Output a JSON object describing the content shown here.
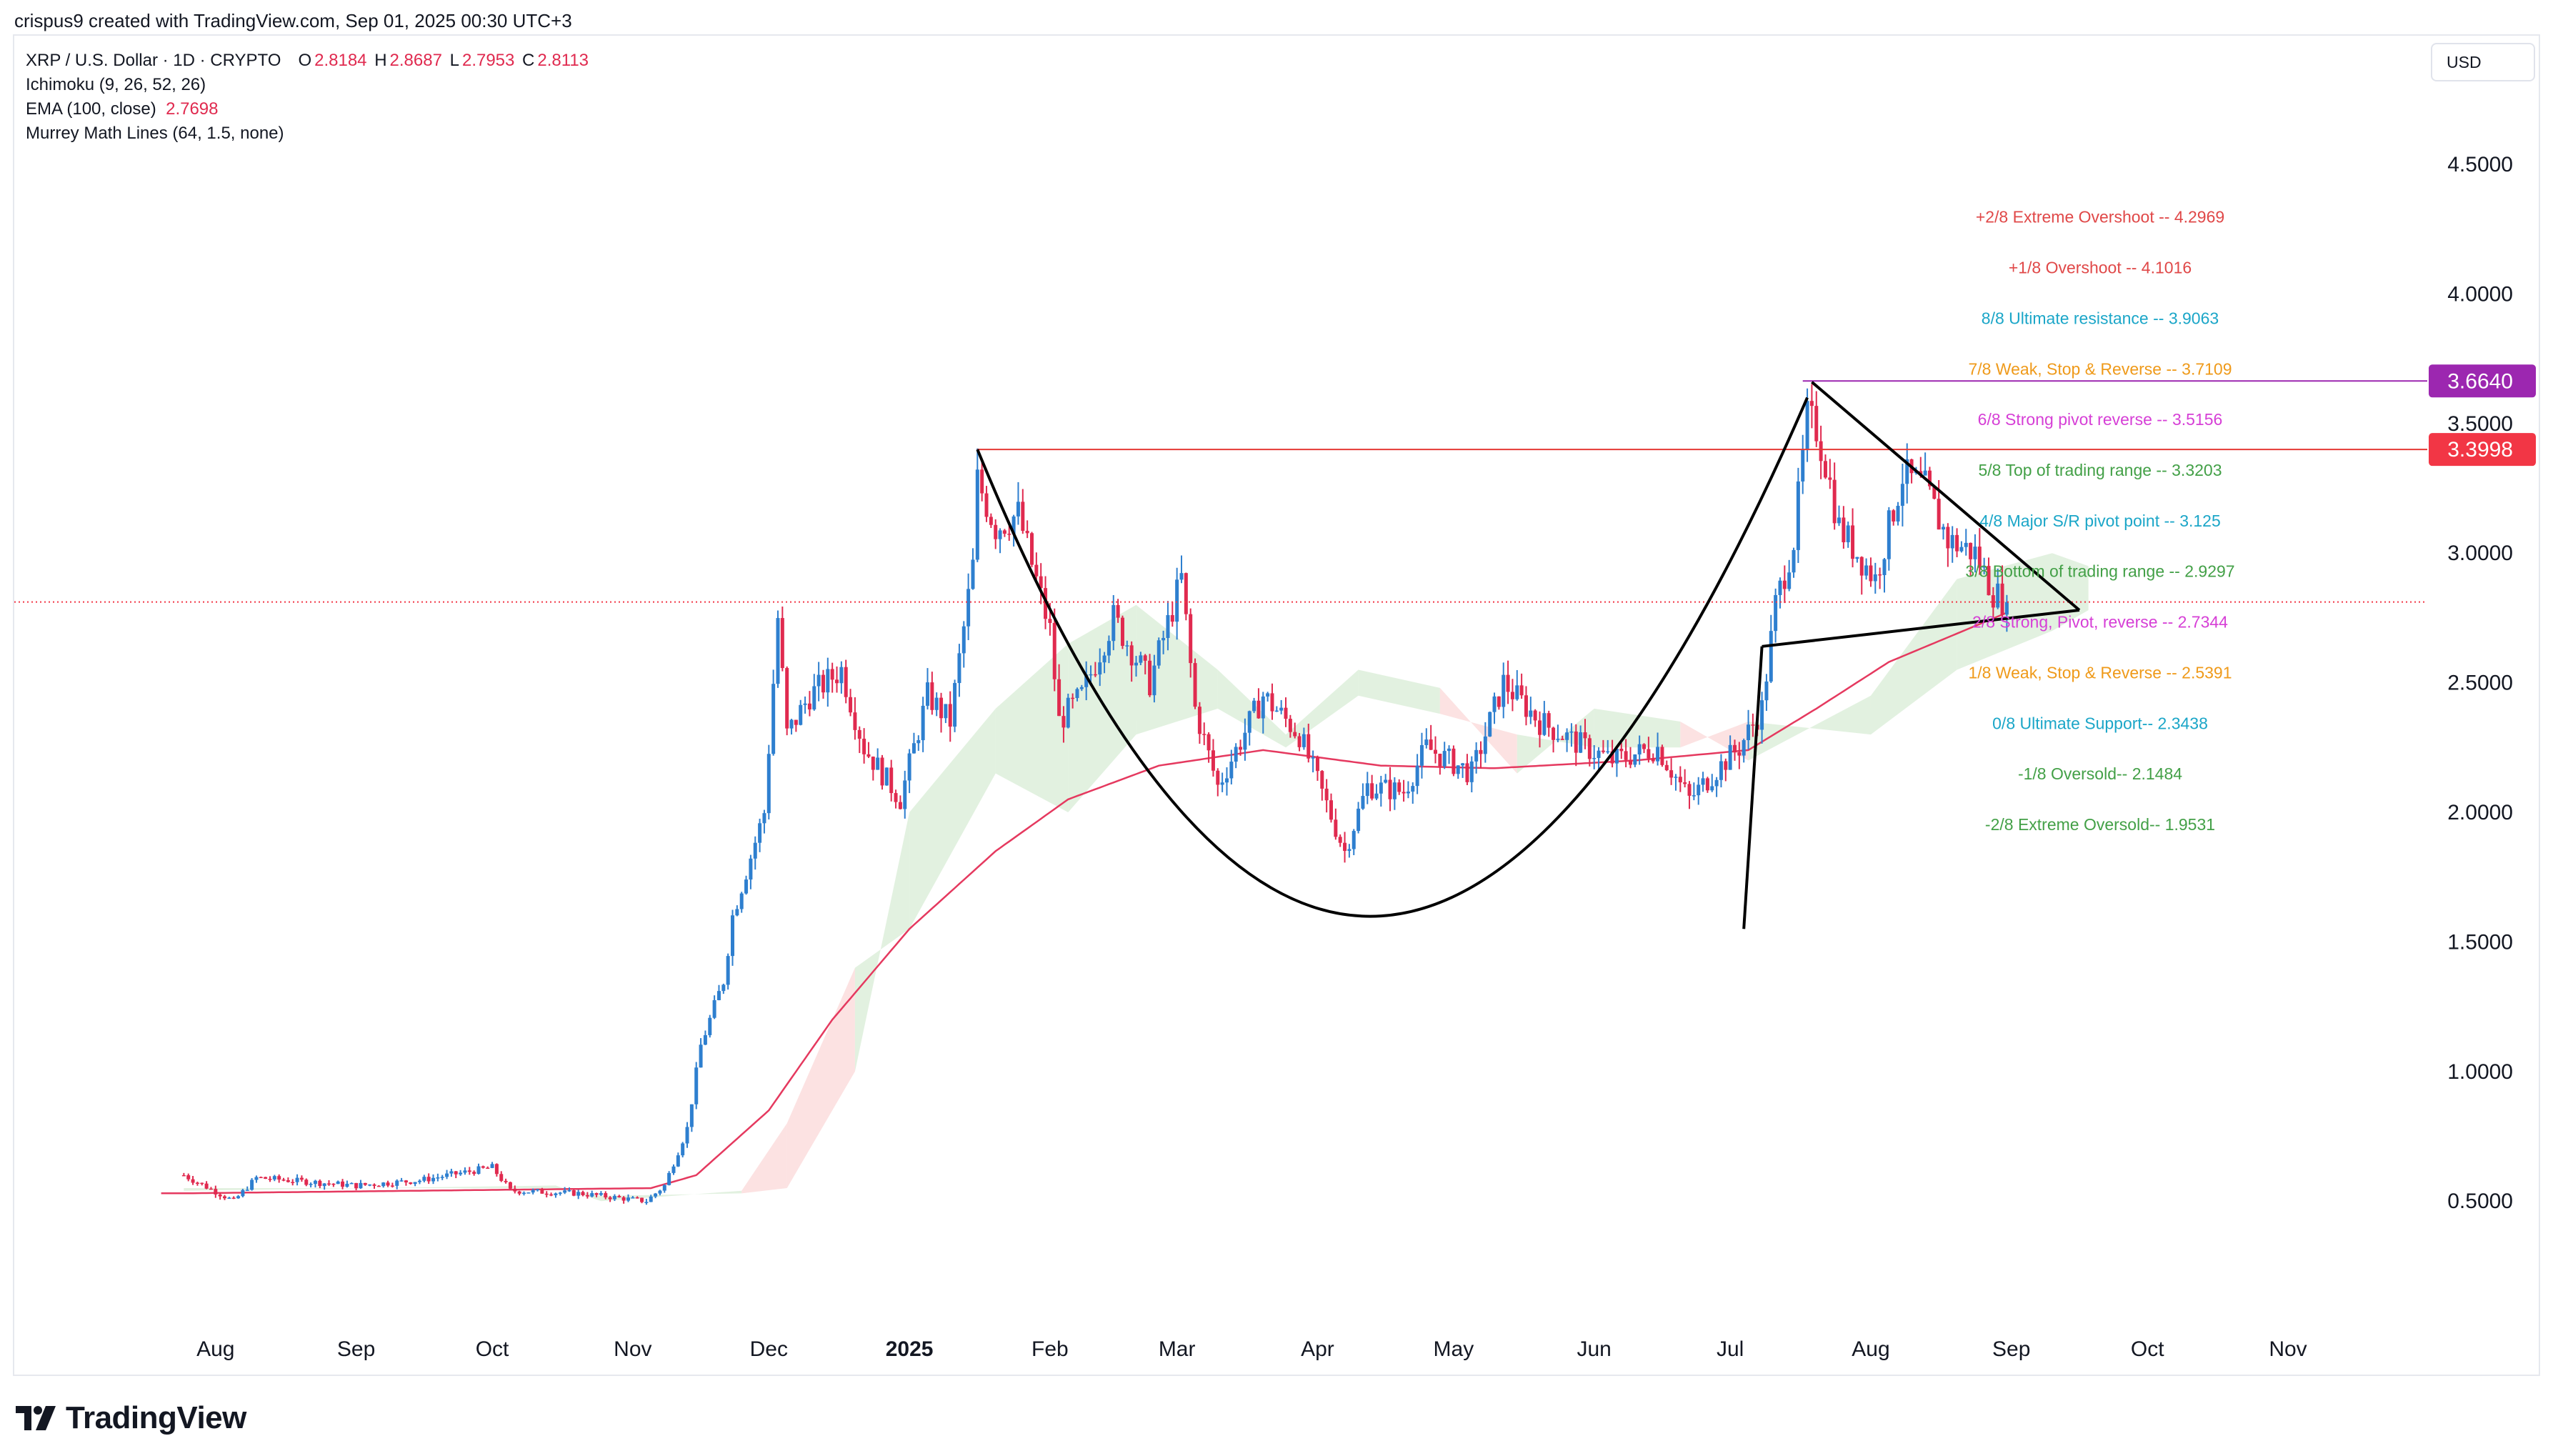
{
  "header": {
    "text": "crispus9 created with TradingView.com, Sep 01, 2025 00:30 UTC+3"
  },
  "legend": {
    "symbol": "XRP / U.S. Dollar · 1D · CRYPTO",
    "open_label": "O",
    "open": "2.8184",
    "high_label": "H",
    "high": "2.8687",
    "low_label": "L",
    "low": "2.7953",
    "close_label": "C",
    "close": "2.8113",
    "ichimoku": "Ichimoku (9, 26, 52, 26)",
    "ema_label": "EMA (100, close)",
    "ema_value": "2.7698",
    "murrey": "Murrey Math Lines (64, 1.5, none)"
  },
  "currency": "USD",
  "brand": "TradingView",
  "colors": {
    "up": "#2e7fcf",
    "down": "#e02a4f",
    "ema": "#e5395f",
    "cloud_up": "#d8ecd6",
    "cloud_down": "#fbd8d8",
    "resistance": "#e53935",
    "ath_line": "#9c27b0",
    "pattern": "#000000"
  },
  "chart_data": {
    "type": "candlestick",
    "y_axis": {
      "ticks": [
        "4.5000",
        "4.0000",
        "3.5000",
        "3.0000",
        "2.5000",
        "2.0000",
        "1.5000",
        "1.0000",
        "0.5000"
      ],
      "range": [
        -0.05,
        4.9
      ]
    },
    "x_axis": {
      "ticks": [
        "Aug",
        "Sep",
        "Oct",
        "Nov",
        "Dec",
        "2025",
        "Feb",
        "Mar",
        "Apr",
        "May",
        "Jun",
        "Jul",
        "Aug",
        "Sep",
        "Oct",
        "Nov"
      ]
    },
    "price_markers": [
      {
        "value": 3.664,
        "label": "3.6640",
        "color": "#9c27b0"
      },
      {
        "value": 3.3998,
        "label": "3.3998",
        "color": "#f23645"
      }
    ],
    "current_price": 2.8113,
    "murrey_lines": [
      {
        "label": "+2/8 Extreme Overshoot --  4.2969",
        "value": 4.2969,
        "color": "#e04848"
      },
      {
        "label": "+1/8 Overshoot --  4.1016",
        "value": 4.1016,
        "color": "#e04848"
      },
      {
        "label": "8/8 Ultimate resistance --  3.9063",
        "value": 3.9063,
        "color": "#1ba6c8"
      },
      {
        "label": "7/8 Weak, Stop & Reverse --  3.7109",
        "value": 3.7109,
        "color": "#ef9a1a"
      },
      {
        "label": "6/8 Strong pivot reverse --  3.5156",
        "value": 3.5156,
        "color": "#d63fd6"
      },
      {
        "label": "5/8 Top of trading range --  3.3203",
        "value": 3.3203,
        "color": "#43a047"
      },
      {
        "label": "4/8 Major S/R pivot point --  3.125",
        "value": 3.125,
        "color": "#1ba6c8"
      },
      {
        "label": "3/8 Bottom of trading range --  2.9297",
        "value": 2.9297,
        "color": "#43a047"
      },
      {
        "label": "2/8 Strong, Pivot, reverse --  2.7344",
        "value": 2.7344,
        "color": "#d63fd6"
      },
      {
        "label": "1/8 Weak, Stop & Reverse --  2.5391",
        "value": 2.5391,
        "color": "#ef9a1a"
      },
      {
        "label": "0/8 Ultimate Support--  2.3438",
        "value": 2.3438,
        "color": "#1ba6c8"
      },
      {
        "label": "-1/8 Oversold--  2.1484",
        "value": 2.1484,
        "color": "#43a047"
      },
      {
        "label": "-2/8 Extreme Oversold--  1.9531",
        "value": 1.9531,
        "color": "#43a047"
      }
    ],
    "price_path": [
      [
        "2024-07-25",
        0.6
      ],
      [
        "2024-08-05",
        0.5
      ],
      [
        "2024-08-10",
        0.59
      ],
      [
        "2024-09-01",
        0.56
      ],
      [
        "2024-09-15",
        0.58
      ],
      [
        "2024-10-01",
        0.63
      ],
      [
        "2024-10-05",
        0.54
      ],
      [
        "2024-10-20",
        0.53
      ],
      [
        "2024-11-04",
        0.5
      ],
      [
        "2024-11-08",
        0.56
      ],
      [
        "2024-11-13",
        0.78
      ],
      [
        "2024-11-16",
        1.1
      ],
      [
        "2024-11-21",
        1.35
      ],
      [
        "2024-11-23",
        1.6
      ],
      [
        "2024-11-30",
        2.0
      ],
      [
        "2024-12-03",
        2.75
      ],
      [
        "2024-12-05",
        2.3
      ],
      [
        "2024-12-10",
        2.45
      ],
      [
        "2024-12-17",
        2.55
      ],
      [
        "2024-12-22",
        2.25
      ],
      [
        "2024-12-30",
        2.05
      ],
      [
        "2025-01-05",
        2.45
      ],
      [
        "2025-01-10",
        2.35
      ],
      [
        "2025-01-15",
        2.95
      ],
      [
        "2025-01-16",
        3.28
      ],
      [
        "2025-01-20",
        3.1
      ],
      [
        "2025-01-25",
        3.15
      ],
      [
        "2025-02-01",
        2.7
      ],
      [
        "2025-02-03",
        2.35
      ],
      [
        "2025-02-08",
        2.45
      ],
      [
        "2025-02-15",
        2.75
      ],
      [
        "2025-02-23",
        2.5
      ],
      [
        "2025-03-02",
        2.9
      ],
      [
        "2025-03-05",
        2.4
      ],
      [
        "2025-03-10",
        2.1
      ],
      [
        "2025-03-20",
        2.45
      ],
      [
        "2025-03-28",
        2.3
      ],
      [
        "2025-04-07",
        1.85
      ],
      [
        "2025-04-12",
        2.1
      ],
      [
        "2025-04-20",
        2.08
      ],
      [
        "2025-04-25",
        2.25
      ],
      [
        "2025-05-05",
        2.15
      ],
      [
        "2025-05-12",
        2.5
      ],
      [
        "2025-05-20",
        2.35
      ],
      [
        "2025-05-30",
        2.25
      ],
      [
        "2025-06-05",
        2.2
      ],
      [
        "2025-06-15",
        2.25
      ],
      [
        "2025-06-22",
        2.05
      ],
      [
        "2025-06-30",
        2.2
      ],
      [
        "2025-07-03",
        2.25
      ],
      [
        "2025-07-08",
        2.4
      ],
      [
        "2025-07-11",
        2.8
      ],
      [
        "2025-07-15",
        3.05
      ],
      [
        "2025-07-18",
        3.52
      ],
      [
        "2025-07-20",
        3.48
      ],
      [
        "2025-07-22",
        3.35
      ],
      [
        "2025-07-25",
        3.1
      ],
      [
        "2025-08-02",
        2.9
      ],
      [
        "2025-08-08",
        3.3
      ],
      [
        "2025-08-13",
        3.25
      ],
      [
        "2025-08-18",
        3.05
      ],
      [
        "2025-08-24",
        3.0
      ],
      [
        "2025-08-28",
        2.85
      ],
      [
        "2025-08-31",
        2.81
      ]
    ],
    "ema": [
      [
        "2024-07-25",
        0.53
      ],
      [
        "2024-11-05",
        0.55
      ],
      [
        "2024-11-15",
        0.6
      ],
      [
        "2024-12-01",
        0.85
      ],
      [
        "2024-12-15",
        1.2
      ],
      [
        "2025-01-01",
        1.55
      ],
      [
        "2025-01-20",
        1.85
      ],
      [
        "2025-02-05",
        2.05
      ],
      [
        "2025-02-25",
        2.18
      ],
      [
        "2025-03-20",
        2.24
      ],
      [
        "2025-04-15",
        2.18
      ],
      [
        "2025-05-10",
        2.17
      ],
      [
        "2025-06-10",
        2.2
      ],
      [
        "2025-07-05",
        2.24
      ],
      [
        "2025-07-20",
        2.4
      ],
      [
        "2025-08-05",
        2.58
      ],
      [
        "2025-08-31",
        2.77
      ]
    ],
    "cloud": [
      [
        "2024-07-25",
        0.55,
        0.54
      ],
      [
        "2024-10-15",
        0.55,
        0.56
      ],
      [
        "2024-10-25",
        0.52,
        0.5
      ],
      [
        "2024-11-25",
        0.53,
        0.54
      ],
      [
        "2024-12-05",
        0.55,
        0.8
      ],
      [
        "2024-12-20",
        1.0,
        1.4
      ],
      [
        "2025-01-01",
        2.0,
        1.55
      ],
      [
        "2025-01-20",
        2.4,
        2.15
      ],
      [
        "2025-02-05",
        2.65,
        2.0
      ],
      [
        "2025-02-20",
        2.8,
        2.3
      ],
      [
        "2025-03-10",
        2.55,
        2.4
      ],
      [
        "2025-03-25",
        2.3,
        2.25
      ],
      [
        "2025-04-10",
        2.55,
        2.45
      ],
      [
        "2025-04-28",
        2.48,
        2.38
      ],
      [
        "2025-05-15",
        2.15,
        2.3
      ],
      [
        "2025-06-01",
        2.4,
        2.25
      ],
      [
        "2025-06-20",
        2.35,
        2.25
      ],
      [
        "2025-07-05",
        2.2,
        2.35
      ],
      [
        "2025-08-01",
        2.45,
        2.3
      ],
      [
        "2025-08-20",
        2.9,
        2.55
      ],
      [
        "2025-09-10",
        3.0,
        2.7
      ],
      [
        "2025-09-18",
        2.95,
        2.78
      ]
    ],
    "patterns": [
      {
        "name": "resistance-line",
        "from": [
          "2025-01-16",
          3.3998
        ],
        "to": [
          "2025-09-30",
          3.3998
        ]
      },
      {
        "name": "ath-line",
        "from": [
          "2025-07-17",
          3.664
        ],
        "to": [
          "2025-09-30",
          3.664
        ]
      },
      {
        "name": "cup",
        "from": [
          "2025-01-16",
          3.4
        ],
        "via": [
          "2025-04-15",
          1.6
        ],
        "to": [
          "2025-07-18",
          3.6
        ]
      },
      {
        "name": "pennant-upper",
        "from": [
          "2025-07-19",
          3.66
        ],
        "to": [
          "2025-09-16",
          2.78
        ]
      },
      {
        "name": "pennant-lower",
        "from": [
          "2025-07-08",
          2.64
        ],
        "to": [
          "2025-09-16",
          2.78
        ]
      },
      {
        "name": "flagpole",
        "from": [
          "2025-07-04",
          1.55
        ],
        "to": [
          "2025-07-08",
          2.64
        ]
      }
    ]
  }
}
